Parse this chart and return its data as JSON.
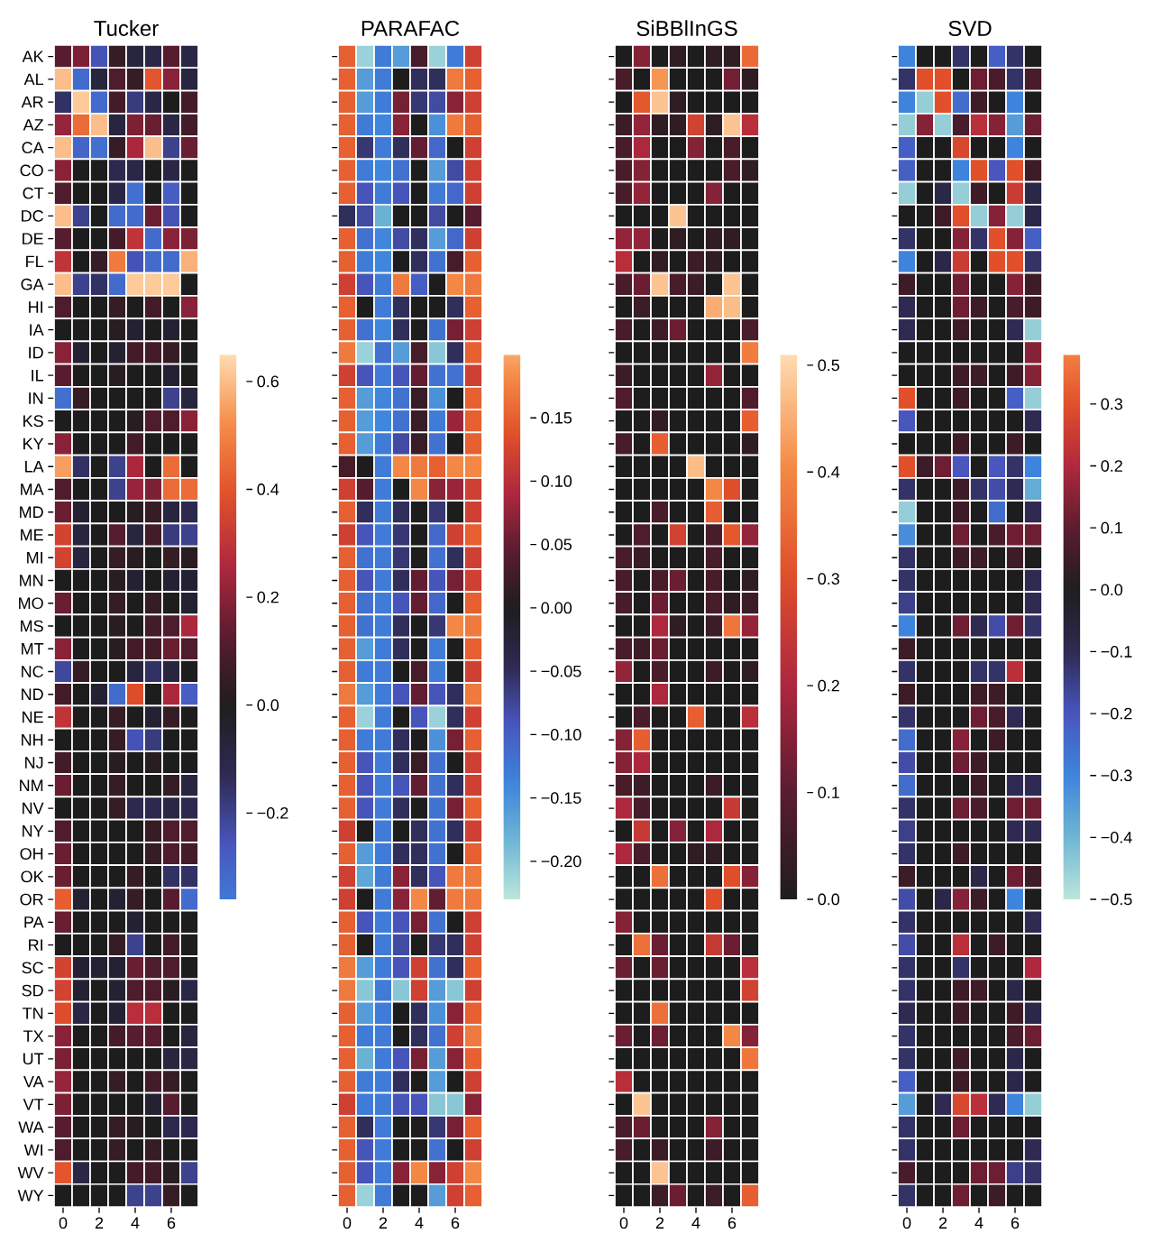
{
  "chart_data": [
    {
      "type": "heatmap",
      "title": "Tucker",
      "categories": [
        "0",
        null,
        "2",
        null,
        "4",
        null,
        "6",
        null
      ],
      "y_categories": [
        "AK",
        "AL",
        "AR",
        "AZ",
        "CA",
        "CO",
        "CT",
        "DC",
        "DE",
        "FL",
        "GA",
        "HI",
        "IA",
        "ID",
        "IL",
        "IN",
        "KS",
        "KY",
        "LA",
        "MA",
        "MD",
        "ME",
        "MI",
        "MN",
        "MO",
        "MS",
        "MT",
        "NC",
        "ND",
        "NE",
        "NH",
        "NJ",
        "NM",
        "NV",
        "NY",
        "OH",
        "OK",
        "OR",
        "PA",
        "RI",
        "SC",
        "SD",
        "TN",
        "TX",
        "UT",
        "VA",
        "VT",
        "WA",
        "WI",
        "WV",
        "WY"
      ],
      "clim": [
        -0.36,
        0.65
      ],
      "cticks": [
        {
          "value": -0.2,
          "label": "−0.2"
        },
        {
          "value": 0,
          "label": "0.0"
        },
        {
          "value": 0.2,
          "label": "0.2"
        },
        {
          "value": 0.4,
          "label": "0.4"
        },
        {
          "value": 0.6,
          "label": "0.6"
        }
      ],
      "cells": [
        [
          0.12,
          0.18,
          -0.25,
          0.05,
          -0.08,
          -0.1,
          0.12,
          -0.1
        ],
        [
          0.6,
          -0.32,
          -0.08,
          0.1,
          0.05,
          0.4,
          0.2,
          -0.08
        ],
        [
          -0.15,
          0.62,
          -0.32,
          0.08,
          -0.18,
          -0.1,
          0.0,
          0.08
        ],
        [
          0.22,
          0.45,
          0.6,
          -0.08,
          0.18,
          0.15,
          -0.1,
          0.08
        ],
        [
          0.6,
          -0.3,
          -0.33,
          0.05,
          0.25,
          0.6,
          -0.2,
          0.15
        ],
        [
          0.2,
          0,
          0,
          -0.12,
          -0.1,
          0,
          -0.1,
          0
        ],
        [
          0.1,
          0,
          0,
          -0.1,
          -0.33,
          0,
          -0.28,
          0
        ],
        [
          0.6,
          -0.2,
          0,
          -0.32,
          -0.32,
          0.15,
          -0.25,
          0
        ],
        [
          0.12,
          0,
          0,
          0.08,
          0.3,
          -0.32,
          0.2,
          0.18
        ],
        [
          0.3,
          0,
          0.05,
          0.48,
          -0.25,
          -0.32,
          -0.32,
          0.58
        ],
        [
          0.6,
          -0.2,
          -0.15,
          -0.32,
          0.62,
          0.62,
          0.62,
          0
        ],
        [
          0.1,
          0,
          0,
          0.05,
          0,
          0.08,
          0,
          0.2
        ],
        [
          0,
          0,
          0,
          0.02,
          -0.05,
          0,
          -0.05,
          0
        ],
        [
          0.2,
          -0.05,
          0,
          -0.05,
          0.08,
          0.08,
          0.05,
          0
        ],
        [
          0.12,
          0,
          0,
          0.02,
          0,
          0,
          -0.05,
          0
        ],
        [
          -0.33,
          0.05,
          0,
          0,
          0,
          0,
          -0.2,
          -0.08
        ],
        [
          0,
          0,
          0,
          0,
          0.02,
          0.1,
          0.1,
          0.2
        ],
        [
          0.2,
          0,
          0,
          0,
          0.08,
          0,
          0,
          0
        ],
        [
          0.55,
          -0.15,
          0,
          -0.2,
          0.25,
          0,
          0.45,
          0
        ],
        [
          0.1,
          0,
          0,
          -0.2,
          0.22,
          0.18,
          0.45,
          0.45
        ],
        [
          0.15,
          -0.05,
          0,
          0,
          0.02,
          0.05,
          -0.08,
          -0.12
        ],
        [
          0.35,
          -0.08,
          0,
          0.12,
          -0.08,
          0.08,
          -0.18,
          -0.2
        ],
        [
          0.35,
          -0.08,
          0,
          0.05,
          0.02,
          0,
          0.05,
          0.02
        ],
        [
          0,
          0,
          0,
          0.02,
          -0.05,
          0,
          -0.05,
          -0.05
        ],
        [
          0.15,
          0,
          0,
          0.05,
          0,
          0.05,
          0,
          -0.05
        ],
        [
          0,
          0,
          0,
          0.02,
          0,
          0.08,
          0.1,
          0.25
        ],
        [
          0.2,
          0,
          0,
          0.02,
          0.08,
          0.08,
          0.15,
          0.1
        ],
        [
          -0.22,
          0.05,
          0,
          0,
          -0.08,
          -0.15,
          -0.08,
          0
        ],
        [
          0.08,
          0,
          -0.05,
          -0.32,
          0.38,
          0,
          0.25,
          -0.28
        ],
        [
          0.3,
          0,
          0,
          0.05,
          0,
          -0.05,
          0.05,
          0
        ],
        [
          0,
          0,
          0,
          0.05,
          -0.25,
          -0.18,
          0,
          0
        ],
        [
          0.08,
          0,
          0,
          0.02,
          0,
          0.02,
          0,
          0
        ],
        [
          0.15,
          0,
          0,
          0.05,
          0,
          0,
          0.05,
          -0.08
        ],
        [
          0,
          0,
          0,
          0.05,
          -0.12,
          -0.12,
          -0.1,
          -0.12
        ],
        [
          0.1,
          0,
          0,
          0,
          0,
          0.05,
          0.1,
          0.1
        ],
        [
          0.15,
          0,
          0,
          0,
          0,
          0.05,
          0.1,
          0.08
        ],
        [
          0.15,
          0,
          0,
          0,
          0.05,
          0,
          -0.15,
          -0.15
        ],
        [
          0.42,
          -0.05,
          0,
          -0.05,
          0.05,
          0,
          0.12,
          -0.32
        ],
        [
          0.15,
          0,
          0,
          0,
          -0.05,
          0,
          0,
          0
        ],
        [
          0,
          0,
          0,
          0.05,
          -0.2,
          0,
          0.08,
          0
        ],
        [
          0.35,
          -0.05,
          -0.05,
          -0.05,
          0.15,
          0.1,
          0.1,
          0
        ],
        [
          0.35,
          -0.05,
          0,
          -0.05,
          0.1,
          0.1,
          0.02,
          -0.1
        ],
        [
          0.38,
          -0.1,
          0,
          -0.05,
          0.28,
          0.28,
          0,
          0
        ],
        [
          0.2,
          0,
          0,
          0.08,
          0.12,
          0.12,
          0,
          -0.08
        ],
        [
          0.18,
          0,
          0,
          0,
          0,
          0,
          -0.08,
          -0.1
        ],
        [
          0.22,
          0,
          0,
          0.05,
          0,
          0.08,
          0.05,
          0
        ],
        [
          0.18,
          0,
          0,
          0,
          0,
          -0.05,
          0.12,
          0
        ],
        [
          0.12,
          0,
          0,
          0.05,
          0.02,
          0,
          -0.12,
          -0.12
        ],
        [
          0.1,
          0,
          0,
          0.05,
          0,
          0.05,
          0,
          0
        ],
        [
          0.4,
          -0.1,
          0,
          0,
          0.08,
          0.08,
          0.02,
          -0.2
        ],
        [
          0,
          0,
          0,
          0,
          -0.2,
          -0.2,
          0.05,
          0
        ]
      ]
    },
    {
      "type": "heatmap",
      "title": "PARAFAC",
      "categories": [
        "0",
        null,
        "2",
        null,
        "4",
        null,
        "6",
        null
      ],
      "tick_labels": "x",
      "y_categories": [
        null,
        null,
        null,
        null,
        null,
        null,
        null,
        null,
        null,
        null,
        null,
        null,
        null,
        null,
        null,
        null,
        null,
        null,
        null,
        null,
        null,
        null,
        null,
        null,
        null,
        null,
        null,
        null,
        null,
        null,
        null,
        null,
        null,
        null,
        null,
        null,
        null,
        null,
        null,
        null,
        null,
        null,
        null,
        null,
        null,
        null,
        null,
        null,
        null,
        null,
        null
      ],
      "clim": [
        -0.23,
        0.2
      ],
      "cticks": [
        {
          "value": -0.2,
          "label": "−0.20"
        },
        {
          "value": -0.15,
          "label": "−0.15"
        },
        {
          "value": -0.1,
          "label": "−0.10"
        },
        {
          "value": -0.05,
          "label": "−0.05"
        },
        {
          "value": 0,
          "label": "0.00"
        },
        {
          "value": 0.05,
          "label": "0.05"
        },
        {
          "value": 0.1,
          "label": "0.10"
        },
        {
          "value": 0.15,
          "label": "0.15"
        }
      ],
      "cells": [
        [
          0.15,
          -0.21,
          -0.13,
          -0.16,
          0.03,
          -0.21,
          -0.13,
          0.12
        ],
        [
          0.15,
          -0.16,
          -0.13,
          0,
          -0.05,
          -0.05,
          0.17,
          0.15
        ],
        [
          0.15,
          -0.16,
          -0.13,
          0.06,
          -0.06,
          -0.08,
          0.07,
          0.12
        ],
        [
          0.15,
          -0.13,
          -0.14,
          0.07,
          0,
          -0.15,
          0.17,
          0.15
        ],
        [
          0.15,
          -0.06,
          -0.13,
          -0.05,
          0.05,
          -0.11,
          0,
          0.12
        ],
        [
          0.15,
          -0.13,
          -0.14,
          -0.12,
          0,
          -0.16,
          -0.08,
          0.12
        ],
        [
          0.15,
          -0.09,
          -0.13,
          -0.09,
          0,
          -0.13,
          -0.11,
          0.12
        ],
        [
          -0.05,
          -0.08,
          -0.18,
          0,
          0,
          -0.08,
          0,
          0.04
        ],
        [
          0.15,
          -0.12,
          -0.14,
          -0.08,
          -0.05,
          -0.16,
          -0.11,
          0.12
        ],
        [
          0.15,
          -0.13,
          -0.14,
          0,
          -0.05,
          -0.12,
          0.03,
          0.15
        ],
        [
          0.12,
          -0.09,
          -0.13,
          0.17,
          -0.1,
          0,
          0.18,
          0.17
        ],
        [
          0.15,
          0,
          -0.13,
          -0.05,
          0,
          0,
          -0.05,
          0.15
        ],
        [
          0.15,
          -0.12,
          -0.14,
          -0.05,
          0,
          -0.12,
          0.06,
          0.12
        ],
        [
          0.17,
          -0.21,
          -0.12,
          -0.16,
          0.03,
          -0.2,
          -0.05,
          0.15
        ],
        [
          0.12,
          -0.09,
          -0.13,
          -0.09,
          0.05,
          -0.12,
          -0.12,
          0.12
        ],
        [
          0.15,
          -0.16,
          -0.14,
          -0.12,
          0.02,
          -0.15,
          0,
          0.15
        ],
        [
          0.15,
          -0.16,
          -0.14,
          -0.12,
          0.02,
          -0.13,
          0.08,
          0.15
        ],
        [
          0.15,
          -0.16,
          -0.13,
          -0.08,
          0.02,
          -0.12,
          0,
          0.15
        ],
        [
          0.03,
          0,
          -0.13,
          0.18,
          0.17,
          0.15,
          0.18,
          0.18
        ],
        [
          0.12,
          0.04,
          -0.13,
          0,
          0.18,
          0.07,
          0.08,
          0.12
        ],
        [
          0.15,
          -0.05,
          -0.13,
          -0.05,
          0,
          -0.06,
          0,
          0.12
        ],
        [
          0.12,
          -0.09,
          -0.13,
          -0.06,
          0,
          -0.11,
          0.12,
          0.15
        ],
        [
          0.15,
          -0.12,
          -0.13,
          -0.06,
          0,
          -0.12,
          -0.05,
          0.12
        ],
        [
          0.15,
          -0.09,
          -0.13,
          -0.05,
          0.05,
          -0.09,
          0.06,
          0.12
        ],
        [
          0.15,
          -0.12,
          -0.13,
          -0.09,
          0.05,
          -0.11,
          0,
          0.15
        ],
        [
          0.15,
          -0.12,
          -0.13,
          -0.05,
          0,
          -0.06,
          0.18,
          0.17
        ],
        [
          0.15,
          -0.16,
          -0.13,
          -0.05,
          0,
          -0.13,
          0,
          0.15
        ],
        [
          0.15,
          -0.13,
          -0.13,
          0,
          0.03,
          -0.13,
          0,
          0.12
        ],
        [
          0.17,
          -0.16,
          -0.13,
          -0.09,
          0.05,
          -0.09,
          -0.05,
          0.17
        ],
        [
          0.15,
          -0.21,
          -0.13,
          0,
          -0.09,
          -0.21,
          -0.05,
          0.12
        ],
        [
          0.15,
          -0.13,
          -0.13,
          -0.05,
          0,
          -0.15,
          0.06,
          0.15
        ],
        [
          0.15,
          -0.09,
          -0.13,
          -0.05,
          0.02,
          -0.12,
          0,
          0.12
        ],
        [
          0.15,
          -0.09,
          -0.13,
          -0.09,
          0.05,
          -0.12,
          -0.05,
          0.12
        ],
        [
          0.15,
          -0.09,
          -0.13,
          -0.05,
          0,
          -0.12,
          0.06,
          0.15
        ],
        [
          0.12,
          0,
          -0.13,
          0,
          -0.05,
          -0.12,
          -0.05,
          0.12
        ],
        [
          0.15,
          -0.16,
          -0.13,
          -0.05,
          -0.05,
          -0.12,
          0,
          0.15
        ],
        [
          0.12,
          -0.17,
          -0.13,
          0.07,
          -0.05,
          -0.09,
          0.17,
          0.17
        ],
        [
          0.12,
          0,
          -0.13,
          0.07,
          0.18,
          0.05,
          0.17,
          0.17
        ],
        [
          0.15,
          -0.09,
          -0.13,
          -0.09,
          0.06,
          -0.12,
          0,
          0.12
        ],
        [
          0.15,
          0,
          -0.13,
          -0.08,
          0,
          -0.06,
          -0.05,
          0.12
        ],
        [
          0.17,
          -0.16,
          -0.13,
          -0.09,
          0.12,
          -0.12,
          -0.05,
          0.15
        ],
        [
          0.17,
          -0.2,
          -0.13,
          -0.2,
          0.12,
          -0.16,
          -0.2,
          0.12
        ],
        [
          0.15,
          -0.16,
          -0.13,
          0,
          -0.05,
          -0.15,
          0.07,
          0.15
        ],
        [
          0.15,
          -0.13,
          -0.13,
          0,
          -0.05,
          -0.12,
          0.12,
          0.17
        ],
        [
          0.15,
          -0.18,
          -0.13,
          -0.09,
          0.06,
          -0.16,
          0.07,
          0.15
        ],
        [
          0.15,
          -0.13,
          -0.13,
          -0.05,
          0,
          -0.16,
          0,
          0.12
        ],
        [
          0.12,
          -0.13,
          -0.13,
          -0.09,
          -0.09,
          -0.2,
          -0.2,
          0.07
        ],
        [
          0.15,
          -0.05,
          -0.13,
          0,
          0,
          -0.06,
          0.06,
          0.15
        ],
        [
          0.15,
          -0.09,
          -0.13,
          0,
          0,
          -0.12,
          0,
          0.12
        ],
        [
          0.15,
          -0.09,
          -0.13,
          0.07,
          0.18,
          0.07,
          0.12,
          0.18
        ],
        [
          0.15,
          -0.21,
          -0.13,
          0,
          0,
          -0.16,
          0.12,
          0.15
        ]
      ]
    },
    {
      "type": "heatmap",
      "title": "SiBBlInGS",
      "categories": [
        "0",
        null,
        "2",
        null,
        "4",
        null,
        "6",
        null
      ],
      "tick_labels": "x",
      "y_categories": [
        null,
        null,
        null,
        null,
        null,
        null,
        null,
        null,
        null,
        null,
        null,
        null,
        null,
        null,
        null,
        null,
        null,
        null,
        null,
        null,
        null,
        null,
        null,
        null,
        null,
        null,
        null,
        null,
        null,
        null,
        null,
        null,
        null,
        null,
        null,
        null,
        null,
        null,
        null,
        null,
        null,
        null,
        null,
        null,
        null,
        null,
        null,
        null,
        null,
        null,
        null
      ],
      "clim": [
        0,
        0.51
      ],
      "cticks": [
        {
          "value": 0,
          "label": "0.0"
        },
        {
          "value": 0.1,
          "label": "0.1"
        },
        {
          "value": 0.2,
          "label": "0.2"
        },
        {
          "value": 0.3,
          "label": "0.3"
        },
        {
          "value": 0.4,
          "label": "0.4"
        },
        {
          "value": 0.5,
          "label": "0.5"
        }
      ],
      "cells": [
        [
          0,
          0.15,
          0,
          0.03,
          0,
          0.03,
          0.03,
          0.35
        ],
        [
          0.07,
          0,
          0.42,
          0,
          0,
          0,
          0.13,
          0.03
        ],
        [
          0,
          0.32,
          0.48,
          0.03,
          0,
          0,
          0,
          0
        ],
        [
          0.05,
          0.17,
          0.03,
          0.03,
          0.27,
          0.03,
          0.48,
          0.22
        ],
        [
          0.07,
          0.2,
          0,
          0,
          0.15,
          0,
          0.07,
          0
        ],
        [
          0.07,
          0.15,
          0,
          0,
          0,
          0,
          0.07,
          0.03
        ],
        [
          0.07,
          0.17,
          0,
          0,
          0,
          0.15,
          0,
          0
        ],
        [
          0,
          0,
          0,
          0.48,
          0,
          0,
          0,
          0
        ],
        [
          0.17,
          0.17,
          0,
          0.03,
          0,
          0.03,
          0.03,
          0
        ],
        [
          0.22,
          0,
          0.03,
          0,
          0.05,
          0.03,
          0,
          0
        ],
        [
          0.07,
          0.12,
          0.48,
          0.07,
          0.05,
          0,
          0.48,
          0
        ],
        [
          0,
          0.05,
          0,
          0,
          0,
          0.45,
          0.47,
          0
        ],
        [
          0.07,
          0,
          0.05,
          0.12,
          0,
          0,
          0,
          0.07
        ],
        [
          0,
          0,
          0,
          0,
          0,
          0,
          0,
          0.38
        ],
        [
          0.05,
          0,
          0,
          0,
          0,
          0.17,
          0,
          0
        ],
        [
          0.08,
          0,
          0,
          0,
          0,
          0,
          0,
          0.08
        ],
        [
          0,
          0,
          0.03,
          0,
          0,
          0,
          0,
          0.33
        ],
        [
          0.07,
          0,
          0.33,
          0,
          0,
          0,
          0,
          0.03
        ],
        [
          0,
          0,
          0,
          0,
          0.47,
          0,
          0,
          0
        ],
        [
          0,
          0,
          0,
          0,
          0,
          0.4,
          0.3,
          0
        ],
        [
          0,
          0,
          0.07,
          0,
          0,
          0.33,
          0,
          0
        ],
        [
          0,
          0.08,
          0,
          0.27,
          0,
          0.07,
          0.32,
          0.17
        ],
        [
          0.07,
          0.05,
          0,
          0,
          0,
          0.07,
          0,
          0
        ],
        [
          0.07,
          0,
          0.07,
          0.12,
          0,
          0.07,
          0,
          0.03
        ],
        [
          0.07,
          0,
          0.12,
          0,
          0,
          0.07,
          0.03,
          0.05
        ],
        [
          0,
          0,
          0.2,
          0.03,
          0,
          0.05,
          0.37,
          0.17
        ],
        [
          0.07,
          0.05,
          0.12,
          0,
          0,
          0,
          0,
          0
        ],
        [
          0.17,
          0,
          0.07,
          0,
          0,
          0.05,
          0,
          0.03
        ],
        [
          0,
          0,
          0.2,
          0,
          0,
          0,
          0,
          0
        ],
        [
          0,
          0.07,
          0,
          0,
          0.33,
          0,
          0,
          0.22
        ],
        [
          0.15,
          0.33,
          0,
          0,
          0,
          0,
          0,
          0
        ],
        [
          0.15,
          0.2,
          0,
          0,
          0,
          0,
          0,
          0
        ],
        [
          0.07,
          0.05,
          0,
          0,
          0,
          0.05,
          0,
          0
        ],
        [
          0.2,
          0.07,
          0,
          0,
          0,
          0,
          0.25,
          0
        ],
        [
          0,
          0.25,
          0,
          0.15,
          0,
          0.2,
          0,
          0
        ],
        [
          0.2,
          0.07,
          0,
          0,
          0.03,
          0.03,
          0,
          0
        ],
        [
          0,
          0,
          0.36,
          0,
          0,
          0,
          0.3,
          0.15
        ],
        [
          0,
          0,
          0,
          0,
          0,
          0.3,
          0,
          0
        ],
        [
          0.15,
          0,
          0,
          0,
          0,
          0,
          0,
          0
        ],
        [
          0,
          0.36,
          0.12,
          0,
          0,
          0.25,
          0.12,
          0
        ],
        [
          0.12,
          0,
          0.12,
          0,
          0,
          0,
          0,
          0.22
        ],
        [
          0,
          0,
          0,
          0,
          0,
          0,
          0,
          0.27
        ],
        [
          0,
          0,
          0.36,
          0,
          0,
          0,
          0,
          0
        ],
        [
          0.12,
          0,
          0.12,
          0,
          0,
          0,
          0.4,
          0.15
        ],
        [
          0,
          0,
          0,
          0,
          0,
          0,
          0,
          0.37
        ],
        [
          0.22,
          0,
          0,
          0,
          0,
          0,
          0,
          0
        ],
        [
          0,
          0.48,
          0,
          0,
          0,
          0,
          0,
          0
        ],
        [
          0.07,
          0.12,
          0,
          0,
          0,
          0.15,
          0,
          0
        ],
        [
          0.07,
          0,
          0.05,
          0,
          0,
          0.05,
          0,
          0
        ],
        [
          0,
          0,
          0.48,
          0,
          0,
          0,
          0,
          0
        ],
        [
          0,
          0,
          0.05,
          0.12,
          0,
          0.05,
          0,
          0.33
        ]
      ]
    },
    {
      "type": "heatmap",
      "title": "SVD",
      "categories": [
        "0",
        null,
        "2",
        null,
        "4",
        null,
        "6",
        null
      ],
      "tick_labels": "x",
      "y_categories": [
        null,
        null,
        null,
        null,
        null,
        null,
        null,
        null,
        null,
        null,
        null,
        null,
        null,
        null,
        null,
        null,
        null,
        null,
        null,
        null,
        null,
        null,
        null,
        null,
        null,
        null,
        null,
        null,
        null,
        null,
        null,
        null,
        null,
        null,
        null,
        null,
        null,
        null,
        null,
        null,
        null,
        null,
        null,
        null,
        null,
        null,
        null,
        null,
        null,
        null,
        null
      ],
      "clim": [
        -0.5,
        0.38
      ],
      "cticks": [
        {
          "value": -0.5,
          "label": "−0.5"
        },
        {
          "value": -0.4,
          "label": "−0.4"
        },
        {
          "value": -0.3,
          "label": "−0.3"
        },
        {
          "value": -0.2,
          "label": "−0.2"
        },
        {
          "value": -0.1,
          "label": "−0.1"
        },
        {
          "value": 0,
          "label": "0.0"
        },
        {
          "value": 0.1,
          "label": "0.1"
        },
        {
          "value": 0.2,
          "label": "0.2"
        },
        {
          "value": 0.3,
          "label": "0.3"
        }
      ],
      "cells": [
        [
          -0.3,
          0,
          0,
          -0.12,
          0,
          -0.22,
          -0.12,
          0
        ],
        [
          -0.12,
          0.3,
          0.3,
          0,
          0.12,
          0.07,
          -0.12,
          0.07
        ],
        [
          -0.3,
          -0.45,
          0.3,
          -0.25,
          0.05,
          0,
          -0.3,
          0
        ],
        [
          -0.45,
          0.15,
          -0.45,
          0.07,
          0.22,
          0.15,
          -0.35,
          0.12
        ],
        [
          -0.22,
          0,
          0,
          0.28,
          0,
          0,
          -0.3,
          0
        ],
        [
          -0.22,
          0,
          0,
          -0.3,
          0.3,
          -0.2,
          0.3,
          0.05
        ],
        [
          -0.45,
          0,
          -0.08,
          -0.45,
          0.05,
          0,
          0.25,
          -0.08
        ],
        [
          0,
          0,
          0.05,
          0.3,
          -0.45,
          0.15,
          -0.45,
          -0.08
        ],
        [
          -0.12,
          0,
          0,
          0.15,
          -0.12,
          0.3,
          0.15,
          -0.22
        ],
        [
          -0.3,
          0,
          -0.08,
          0.25,
          0,
          0.3,
          0.3,
          -0.12
        ],
        [
          0.05,
          0,
          0,
          0.12,
          0,
          0,
          0.15,
          0.05
        ],
        [
          -0.1,
          0,
          0,
          0.12,
          0.05,
          0,
          0.07,
          0.05
        ],
        [
          -0.1,
          0,
          0,
          0.05,
          0,
          0,
          -0.1,
          -0.45
        ],
        [
          0,
          0,
          0,
          0,
          0,
          0,
          0,
          0.15
        ],
        [
          0,
          0,
          0,
          0.05,
          0.05,
          0,
          0.05,
          0.15
        ],
        [
          0.3,
          0,
          0,
          0.05,
          0,
          0,
          -0.22,
          -0.45
        ],
        [
          -0.2,
          0,
          0,
          0,
          0,
          0,
          0,
          -0.1
        ],
        [
          0,
          0,
          0,
          0.05,
          0,
          0,
          0.05,
          0
        ],
        [
          0.3,
          0.05,
          0.12,
          -0.2,
          0,
          -0.2,
          -0.12,
          -0.3
        ],
        [
          -0.12,
          0,
          0,
          0.05,
          -0.12,
          -0.18,
          -0.1,
          -0.38
        ],
        [
          -0.45,
          0,
          0,
          0.05,
          0,
          -0.25,
          0,
          -0.1
        ],
        [
          -0.32,
          0,
          0,
          0.12,
          0,
          0.07,
          0.12,
          0.12
        ],
        [
          -0.12,
          0,
          0,
          0.05,
          0.05,
          0,
          0.05,
          0
        ],
        [
          -0.12,
          0,
          0,
          0,
          0,
          0,
          0,
          -0.1
        ],
        [
          -0.15,
          0,
          0,
          0,
          0,
          0,
          0,
          -0.1
        ],
        [
          -0.3,
          0,
          0,
          0.12,
          -0.1,
          -0.18,
          0.12,
          -0.12
        ],
        [
          0.05,
          0,
          0,
          0,
          0,
          0,
          0,
          0
        ],
        [
          -0.12,
          0,
          0,
          0,
          -0.12,
          -0.12,
          0.22,
          0
        ],
        [
          0.05,
          0,
          0,
          0,
          0.05,
          0.05,
          0,
          0
        ],
        [
          -0.12,
          0,
          0,
          0,
          0.12,
          0.07,
          -0.1,
          0
        ],
        [
          -0.25,
          0,
          0,
          0.15,
          0,
          0.05,
          0,
          0
        ],
        [
          -0.18,
          0,
          0,
          0.12,
          0.05,
          0,
          0,
          0
        ],
        [
          -0.25,
          0,
          0,
          0,
          0.05,
          0,
          -0.1,
          -0.1
        ],
        [
          -0.12,
          0,
          0,
          0.12,
          0.07,
          0,
          0.12,
          0.12
        ],
        [
          -0.15,
          0,
          0,
          0,
          0,
          0,
          -0.1,
          -0.1
        ],
        [
          -0.12,
          0,
          0,
          0.05,
          0,
          0,
          0,
          0
        ],
        [
          0.05,
          0,
          0,
          0,
          -0.08,
          0,
          0.12,
          0.05
        ],
        [
          -0.18,
          0,
          -0.08,
          0.15,
          0.05,
          0,
          -0.3,
          0
        ],
        [
          -0.12,
          0,
          0,
          0,
          0,
          0,
          0,
          -0.1
        ],
        [
          -0.18,
          0,
          0,
          0.22,
          0,
          0.05,
          0,
          0
        ],
        [
          -0.12,
          0,
          0,
          -0.12,
          0,
          0,
          0,
          0.2
        ],
        [
          -0.12,
          0,
          0,
          0.05,
          0.05,
          0,
          -0.08,
          0
        ],
        [
          -0.1,
          0,
          0,
          0.05,
          0,
          0,
          0.05,
          -0.08
        ],
        [
          -0.12,
          0,
          0,
          0,
          0,
          0,
          0.07,
          0.12
        ],
        [
          -0.12,
          0,
          0,
          0.05,
          0,
          0,
          -0.08,
          0
        ],
        [
          -0.22,
          0,
          0,
          0.05,
          0,
          0,
          -0.08,
          0
        ],
        [
          -0.35,
          0,
          -0.1,
          0.28,
          0.22,
          -0.1,
          -0.3,
          -0.45
        ],
        [
          -0.12,
          0,
          0,
          0.12,
          0,
          0,
          0,
          0
        ],
        [
          -0.12,
          0,
          0,
          0,
          0,
          0,
          0,
          -0.1
        ],
        [
          0.07,
          0,
          0,
          0,
          0.12,
          0.12,
          -0.15,
          -0.12
        ],
        [
          -0.12,
          0,
          0,
          0.12,
          0,
          0.05,
          0,
          0
        ]
      ]
    }
  ]
}
